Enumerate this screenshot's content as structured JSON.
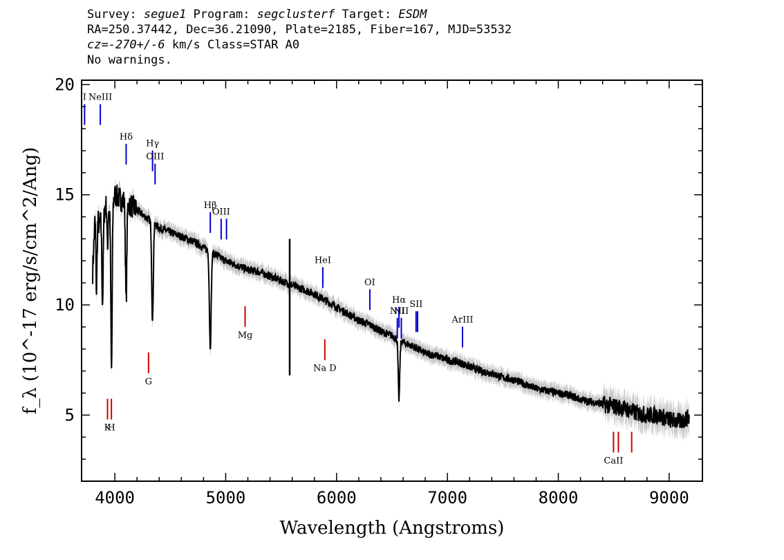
{
  "header": {
    "line1": {
      "survey_label": "Survey: ",
      "survey": "segue1",
      "program_label": " Program: ",
      "program": "segclusterf",
      "target_label": " Target: ",
      "target": "ESDM"
    },
    "line2": "RA=250.37442, Dec=36.21090, Plate=2185, Fiber=167, MJD=53532",
    "line3": {
      "cz_label": "cz=",
      "cz_value": "-270+/-6",
      "cz_rest": " km/s Class=STAR A0"
    },
    "line4": "No warnings."
  },
  "chart_data": {
    "type": "line",
    "xlabel": "Wavelength (Angstroms)",
    "ylabel": "f_λ (10^-17 erg/s/cm^2/Ang)",
    "xlim": [
      3700,
      9300
    ],
    "ylim": [
      2,
      20.2
    ],
    "x_ticks": [
      4000,
      5000,
      6000,
      7000,
      8000,
      9000
    ],
    "y_ticks": [
      5,
      10,
      15,
      20
    ],
    "series": [
      {
        "color": "#000000",
        "x": [
          3800,
          3820,
          3840,
          3860,
          3880,
          3920,
          3960,
          4000,
          4050,
          4150,
          4200,
          4250,
          4300,
          4400,
          4500,
          4600,
          4700,
          4800,
          4900,
          5000,
          5100,
          5200,
          5300,
          5400,
          5500,
          5600,
          5700,
          5800,
          5900,
          6000,
          6100,
          6200,
          6300,
          6400,
          6500,
          6600,
          6700,
          6800,
          6900,
          7000,
          7100,
          7200,
          7300,
          7400,
          7500,
          7600,
          7700,
          7800,
          7900,
          8000,
          8100,
          8200,
          8300,
          8400,
          8500,
          8600,
          8700,
          8800,
          8900,
          9000,
          9100,
          9180
        ],
        "y": [
          11.5,
          13.8,
          14.2,
          13.5,
          14.0,
          14.5,
          14.3,
          15.0,
          14.8,
          14.5,
          14.3,
          14.1,
          13.9,
          13.5,
          13.3,
          13.1,
          12.9,
          12.6,
          12.3,
          12.0,
          11.8,
          11.6,
          11.5,
          11.3,
          11.1,
          10.9,
          10.7,
          10.5,
          10.2,
          9.9,
          9.6,
          9.3,
          9.1,
          8.8,
          8.6,
          8.3,
          8.1,
          7.8,
          7.7,
          7.5,
          7.4,
          7.2,
          7.0,
          6.9,
          6.7,
          6.6,
          6.4,
          6.2,
          6.1,
          6.0,
          5.9,
          5.7,
          5.6,
          5.5,
          5.4,
          5.3,
          5.1,
          5.0,
          5.0,
          4.8,
          4.7,
          4.9
        ]
      }
    ],
    "emission_lines": [
      {
        "label": "I",
        "x": 3727,
        "y_label": 19.3,
        "color": "#0000cc"
      },
      {
        "label": "NeIII",
        "x": 3869,
        "y_label": 19.3,
        "color": "#0000cc"
      },
      {
        "label": "Hδ",
        "x": 4102,
        "y_label": 17.5,
        "color": "#0000cc"
      },
      {
        "label": "Hγ",
        "x": 4340,
        "y_label": 17.2,
        "color": "#0000cc"
      },
      {
        "label": "OIII",
        "x": 4363,
        "y_label": 16.6,
        "color": "#0000cc"
      },
      {
        "label": "Hβ",
        "x": 4861,
        "y_label": 14.4,
        "color": "#0000cc"
      },
      {
        "label": "OIII",
        "x": 4959,
        "y_label": 14.1,
        "color": "#0000cc"
      },
      {
        "label": "",
        "x": 5007,
        "y_label": 14.1,
        "color": "#0000cc"
      },
      {
        "label": "HeI",
        "x": 5876,
        "y_label": 11.9,
        "color": "#0000cc"
      },
      {
        "label": "OI",
        "x": 6300,
        "y_label": 10.9,
        "color": "#0000cc"
      },
      {
        "label": "NII",
        "x": 6548,
        "y_label": 9.6,
        "color": "#0000cc"
      },
      {
        "label": "Hα",
        "x": 6563,
        "y_label": 10.1,
        "color": "#0000cc"
      },
      {
        "label": "NII",
        "x": 6584,
        "y_label": 9.6,
        "color": "#0000cc"
      },
      {
        "label": "SII",
        "x": 6717,
        "y_label": 9.9,
        "color": "#0000cc"
      },
      {
        "label": "",
        "x": 6731,
        "y_label": 9.9,
        "color": "#0000cc"
      },
      {
        "label": "ArIII",
        "x": 7136,
        "y_label": 9.2,
        "color": "#0000cc"
      }
    ],
    "absorption_lines": [
      {
        "label": "K",
        "x": 3934,
        "y_label": 4.3,
        "color": "#cc0000"
      },
      {
        "label": "H",
        "x": 3969,
        "y_label": 4.3,
        "color": "#cc0000"
      },
      {
        "label": "G",
        "x": 4304,
        "y_label": 6.4,
        "color": "#cc0000"
      },
      {
        "label": "Mg",
        "x": 5175,
        "y_label": 8.5,
        "color": "#cc0000"
      },
      {
        "label": "Na D",
        "x": 5894,
        "y_label": 7.0,
        "color": "#cc0000"
      },
      {
        "label": "CaII",
        "x": 8498,
        "y_label": 2.8,
        "color": "#cc0000"
      },
      {
        "label": "",
        "x": 8542,
        "y_label": 2.8,
        "color": "#cc0000"
      },
      {
        "label": "",
        "x": 8662,
        "y_label": 2.8,
        "color": "#cc0000"
      }
    ]
  }
}
